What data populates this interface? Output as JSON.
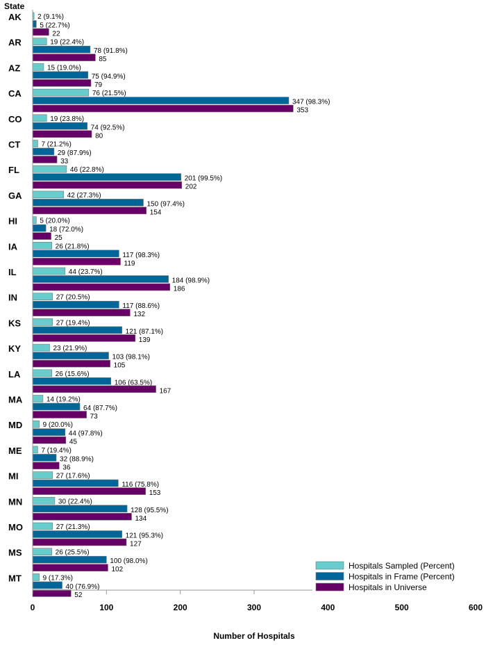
{
  "chart_data": {
    "type": "bar",
    "orientation": "horizontal",
    "ylabel": "State",
    "xlabel": "Number of Hospitals",
    "xlim": [
      0,
      600
    ],
    "xticks": [
      0,
      100,
      200,
      300,
      400,
      500,
      600
    ],
    "grid": false,
    "legend_position": "bottom-right",
    "categories": [
      "AK",
      "AR",
      "AZ",
      "CA",
      "CO",
      "CT",
      "FL",
      "GA",
      "HI",
      "IA",
      "IL",
      "IN",
      "KS",
      "KY",
      "LA",
      "MA",
      "MD",
      "ME",
      "MI",
      "MN",
      "MO",
      "MS",
      "MT"
    ],
    "series": [
      {
        "name": "Hospitals Sampled (Percent)",
        "color": "#66CCCC",
        "values": [
          2,
          19,
          15,
          76,
          19,
          7,
          46,
          42,
          5,
          26,
          44,
          27,
          27,
          23,
          26,
          14,
          9,
          7,
          27,
          30,
          27,
          26,
          9
        ],
        "percents": [
          "9.1%",
          "22.4%",
          "19.0%",
          "21.5%",
          "23.8%",
          "21.2%",
          "22.8%",
          "27.3%",
          "20.0%",
          "21.8%",
          "23.7%",
          "20.5%",
          "19.4%",
          "21.9%",
          "15.6%",
          "19.2%",
          "20.0%",
          "19.4%",
          "17.6%",
          "22.4%",
          "21.3%",
          "25.5%",
          "17.3%"
        ]
      },
      {
        "name": "Hospitals in Frame (Percent)",
        "color": "#006699",
        "values": [
          5,
          78,
          75,
          347,
          74,
          29,
          201,
          150,
          18,
          117,
          184,
          117,
          121,
          103,
          106,
          64,
          44,
          32,
          116,
          128,
          121,
          100,
          40
        ],
        "percents": [
          "22.7%",
          "91.8%",
          "94.9%",
          "98.3%",
          "92.5%",
          "87.9%",
          "99.5%",
          "97.4%",
          "72.0%",
          "98.3%",
          "98.9%",
          "88.6%",
          "87.1%",
          "98.1%",
          "63.5%",
          "87.7%",
          "97.8%",
          "88.9%",
          "75.8%",
          "95.5%",
          "95.3%",
          "98.0%",
          "76.9%"
        ]
      },
      {
        "name": "Hospitals in Universe",
        "color": "#660066",
        "values": [
          22,
          85,
          79,
          353,
          80,
          33,
          202,
          154,
          25,
          119,
          186,
          132,
          139,
          105,
          167,
          73,
          45,
          36,
          153,
          134,
          127,
          102,
          52
        ]
      }
    ]
  }
}
